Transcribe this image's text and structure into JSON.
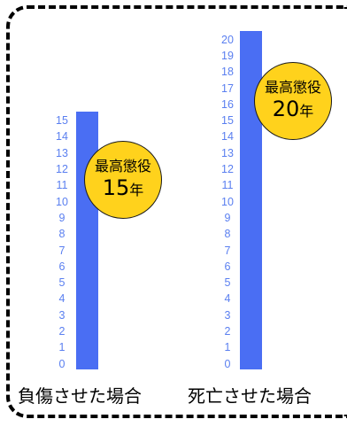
{
  "columns": [
    {
      "label": "負傷させた場合",
      "max": 15,
      "badge_title": "最高懲役",
      "badge_value": "15",
      "badge_unit": "年"
    },
    {
      "label": "死亡させた場合",
      "max": 20,
      "badge_title": "最高懲役",
      "badge_value": "20",
      "badge_unit": "年"
    }
  ],
  "colors": {
    "bar": "#4a6ef3",
    "scale_text": "#5a7ff0",
    "badge": "#ffd21c"
  }
}
